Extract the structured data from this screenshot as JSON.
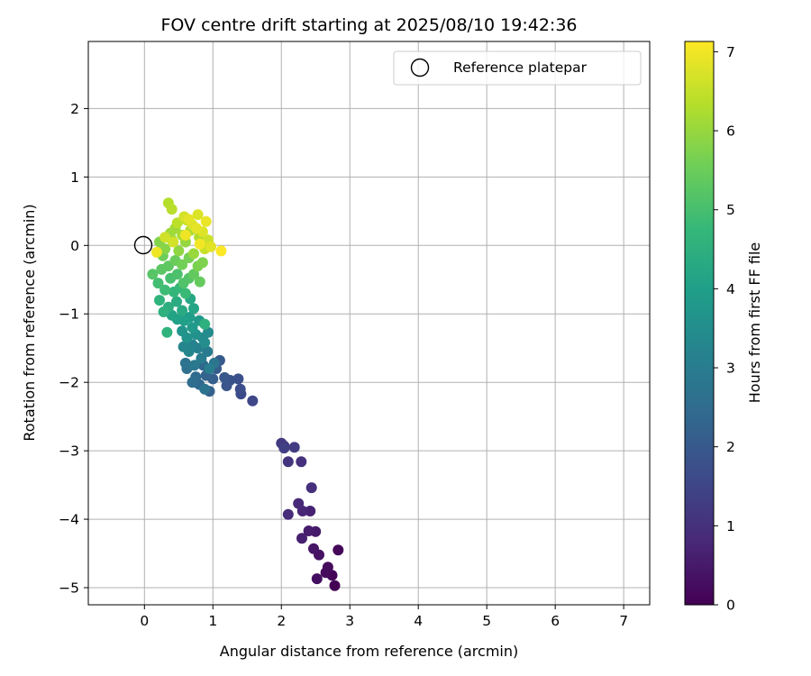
{
  "chart_data": {
    "type": "scatter",
    "title": "FOV centre drift starting at 2025/08/10 19:42:36",
    "xlabel": "Angular distance from reference (arcmin)",
    "ylabel": "Rotation from reference (arcmin)",
    "xlim": [
      -0.82,
      7.38
    ],
    "ylim": [
      -5.25,
      2.98
    ],
    "xticks": [
      "0",
      "1",
      "2",
      "3",
      "4",
      "5",
      "6",
      "7"
    ],
    "yticks": [
      "2",
      "1",
      "0",
      "−1",
      "−2",
      "−3",
      "−4",
      "−5"
    ],
    "grid": true,
    "legend": {
      "position": "top-right",
      "label": "Reference platepar"
    },
    "reference_point": {
      "x": 0,
      "y": 0
    },
    "colorbar": {
      "label": "Hours from first FF file",
      "min": 0,
      "max": 7.13,
      "ticks": [
        "0",
        "1",
        "2",
        "3",
        "4",
        "5",
        "6",
        "7"
      ],
      "colormap": "viridis"
    },
    "colormap_stops": [
      "#440154",
      "#482878",
      "#3e4989",
      "#31688e",
      "#26828e",
      "#1f9e89",
      "#35b779",
      "#6ece58",
      "#b5de2b",
      "#fde725"
    ],
    "points": [
      [
        2.78,
        -4.97,
        0.02
      ],
      [
        2.74,
        -4.82,
        0.08
      ],
      [
        2.83,
        -4.45,
        0.12
      ],
      [
        2.65,
        -4.78,
        0.18
      ],
      [
        2.68,
        -4.7,
        0.22
      ],
      [
        2.52,
        -4.87,
        0.28
      ],
      [
        2.55,
        -4.52,
        0.35
      ],
      [
        2.47,
        -4.43,
        0.42
      ],
      [
        2.5,
        -4.18,
        0.48
      ],
      [
        2.4,
        -4.17,
        0.55
      ],
      [
        2.3,
        -4.28,
        0.62
      ],
      [
        2.42,
        -3.88,
        0.68
      ],
      [
        2.31,
        -3.88,
        0.75
      ],
      [
        2.25,
        -3.77,
        0.82
      ],
      [
        2.1,
        -3.93,
        0.88
      ],
      [
        2.44,
        -3.54,
        0.95
      ],
      [
        2.29,
        -3.16,
        1.02
      ],
      [
        2.1,
        -3.16,
        1.08
      ],
      [
        2.04,
        -2.93,
        1.15
      ],
      [
        2.0,
        -2.89,
        1.22
      ],
      [
        2.19,
        -2.95,
        1.28
      ],
      [
        2.04,
        -2.96,
        1.35
      ],
      [
        1.58,
        -2.27,
        1.55
      ],
      [
        1.41,
        -2.17,
        1.62
      ],
      [
        1.4,
        -2.1,
        1.68
      ],
      [
        1.37,
        -1.95,
        1.75
      ],
      [
        1.25,
        -1.97,
        1.82
      ],
      [
        1.2,
        -2.05,
        1.88
      ],
      [
        1.17,
        -1.93,
        1.95
      ],
      [
        1.1,
        -1.68,
        2.02
      ],
      [
        1.05,
        -1.8,
        2.08
      ],
      [
        1.0,
        -1.95,
        2.15
      ],
      [
        0.95,
        -2.13,
        2.22
      ],
      [
        0.9,
        -1.9,
        2.28
      ],
      [
        0.86,
        -1.75,
        2.35
      ],
      [
        0.8,
        -2.03,
        2.42
      ],
      [
        0.75,
        -1.92,
        2.48
      ],
      [
        0.7,
        -2.0,
        2.55
      ],
      [
        0.62,
        -1.8,
        2.62
      ],
      [
        0.6,
        -1.72,
        2.68
      ],
      [
        0.88,
        -2.1,
        2.72
      ],
      [
        1.02,
        -1.72,
        2.78
      ],
      [
        0.73,
        -1.75,
        2.85
      ],
      [
        0.92,
        -1.55,
        2.92
      ],
      [
        0.83,
        -1.65,
        2.98
      ],
      [
        0.95,
        -1.8,
        3.05
      ],
      [
        0.78,
        -1.5,
        3.12
      ],
      [
        0.7,
        -1.45,
        3.18
      ],
      [
        0.65,
        -1.55,
        3.25
      ],
      [
        0.57,
        -1.48,
        3.32
      ],
      [
        0.85,
        -1.35,
        3.38
      ],
      [
        0.93,
        -1.27,
        3.45
      ],
      [
        0.88,
        -1.42,
        3.52
      ],
      [
        0.75,
        -1.3,
        3.58
      ],
      [
        0.62,
        -1.35,
        3.65
      ],
      [
        0.55,
        -1.25,
        3.72
      ],
      [
        0.8,
        -1.1,
        3.78
      ],
      [
        0.7,
        -1.2,
        3.85
      ],
      [
        0.66,
        -1.05,
        3.92
      ],
      [
        0.58,
        -1.1,
        3.98
      ],
      [
        0.48,
        -1.08,
        4.05
      ],
      [
        0.4,
        -1.02,
        4.12
      ],
      [
        0.72,
        -0.92,
        4.18
      ],
      [
        0.67,
        -0.78,
        4.25
      ],
      [
        0.55,
        -0.95,
        4.32
      ],
      [
        0.47,
        -0.82,
        4.38
      ],
      [
        0.35,
        -0.9,
        4.45
      ],
      [
        0.28,
        -0.97,
        4.52
      ],
      [
        0.88,
        -1.15,
        4.55
      ],
      [
        0.33,
        -1.27,
        4.58
      ],
      [
        0.22,
        -0.8,
        4.62
      ],
      [
        0.43,
        -0.68,
        4.68
      ],
      [
        0.52,
        -0.62,
        4.75
      ],
      [
        0.6,
        -0.7,
        4.82
      ],
      [
        0.3,
        -0.65,
        4.88
      ],
      [
        0.2,
        -0.55,
        4.95
      ],
      [
        0.38,
        -0.48,
        5.02
      ],
      [
        0.48,
        -0.42,
        5.08
      ],
      [
        0.57,
        -0.55,
        5.12
      ],
      [
        0.65,
        -0.48,
        5.18
      ],
      [
        0.12,
        -0.42,
        5.22
      ],
      [
        0.25,
        -0.35,
        5.28
      ],
      [
        0.35,
        -0.3,
        5.32
      ],
      [
        0.72,
        -0.42,
        5.38
      ],
      [
        0.81,
        -0.53,
        5.42
      ],
      [
        0.45,
        -0.22,
        5.48
      ],
      [
        0.27,
        -0.15,
        5.52
      ],
      [
        0.55,
        -0.28,
        5.58
      ],
      [
        0.65,
        -0.18,
        5.62
      ],
      [
        0.78,
        -0.3,
        5.68
      ],
      [
        0.85,
        -0.25,
        5.72
      ],
      [
        0.22,
        0.05,
        5.78
      ],
      [
        0.3,
        -0.05,
        5.82
      ],
      [
        0.4,
        0.08,
        5.88
      ],
      [
        0.5,
        -0.08,
        5.92
      ],
      [
        0.6,
        0.05,
        5.98
      ],
      [
        0.72,
        -0.12,
        6.02
      ],
      [
        0.38,
        0.18,
        6.08
      ],
      [
        0.45,
        0.25,
        6.12
      ],
      [
        0.55,
        0.15,
        6.18
      ],
      [
        0.67,
        0.22,
        6.22
      ],
      [
        0.8,
        0.12,
        6.28
      ],
      [
        0.35,
        0.62,
        6.32
      ],
      [
        0.4,
        0.53,
        6.38
      ],
      [
        0.48,
        0.33,
        6.42
      ],
      [
        0.62,
        0.37,
        6.48
      ],
      [
        0.88,
        -0.05,
        6.52
      ],
      [
        0.93,
        0.08,
        6.58
      ],
      [
        0.3,
        0.12,
        6.62
      ],
      [
        0.42,
        0.05,
        6.65
      ],
      [
        0.58,
        0.42,
        6.68
      ],
      [
        0.7,
        0.3,
        6.72
      ],
      [
        0.78,
        0.45,
        6.75
      ],
      [
        0.85,
        0.2,
        6.78
      ],
      [
        0.97,
        -0.02,
        6.82
      ],
      [
        0.65,
        0.38,
        6.85
      ],
      [
        0.76,
        0.25,
        6.88
      ],
      [
        0.9,
        0.35,
        6.92
      ],
      [
        0.18,
        -0.1,
        6.95
      ],
      [
        0.6,
        0.15,
        6.98
      ],
      [
        0.81,
        0.02,
        7.02
      ],
      [
        1.12,
        -0.08,
        7.1
      ]
    ]
  }
}
